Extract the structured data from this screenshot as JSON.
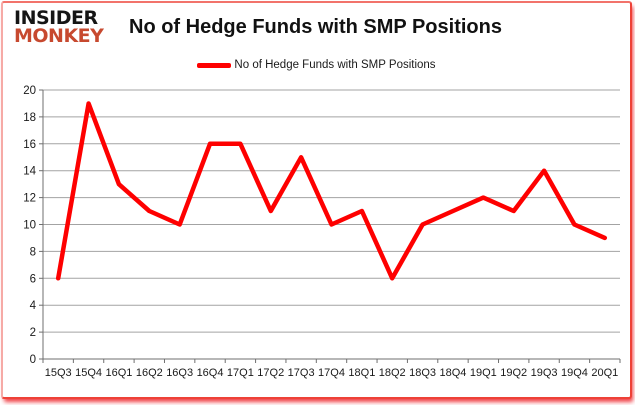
{
  "logo": {
    "line1": "INSIDER",
    "line2": "MONKEY"
  },
  "header": {
    "title": "No of Hedge Funds with SMP Positions"
  },
  "legend": {
    "label": "No of Hedge Funds with SMP Positions",
    "line_color": "#fe0000"
  },
  "colors": {
    "series_line": "#fe0000",
    "gridline": "#a3a3a3",
    "axis": "#6f6f6f",
    "tick_label": "#1a1a1a",
    "frame_border": "#ee4137",
    "logo_primary": "#151515",
    "logo_accent": "#c7492f"
  },
  "chart_data": {
    "type": "line",
    "title": "No of Hedge Funds with SMP Positions",
    "categories": [
      "15Q3",
      "15Q4",
      "16Q1",
      "16Q2",
      "16Q3",
      "16Q4",
      "17Q1",
      "17Q2",
      "17Q3",
      "17Q4",
      "18Q1",
      "18Q2",
      "18Q3",
      "18Q4",
      "19Q1",
      "19Q2",
      "19Q3",
      "19Q4",
      "20Q1"
    ],
    "values": [
      6,
      19,
      13,
      11,
      10,
      16,
      16,
      11,
      15,
      10,
      11,
      6,
      10,
      11,
      12,
      11,
      14,
      10,
      9
    ],
    "xlabel": "",
    "ylabel": "",
    "ylim": [
      0,
      20
    ],
    "ytick_step": 2,
    "grid": true,
    "legend_position": "top-center",
    "legend_entries": [
      "No of Hedge Funds with SMP Positions"
    ]
  }
}
